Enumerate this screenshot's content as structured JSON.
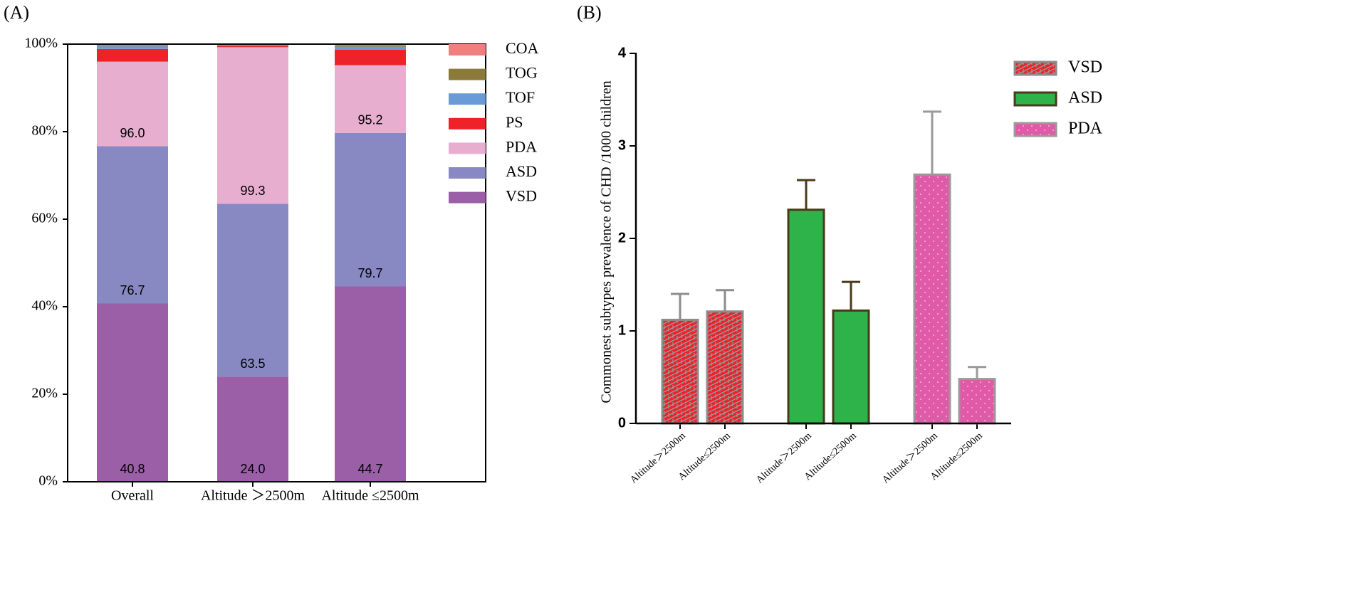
{
  "chart_data": [
    {
      "type": "stacked_bar",
      "title": "(A)",
      "categories": [
        "Overall",
        "Altitude ＞2500m",
        "Altitude ≤2500m"
      ],
      "series": [
        {
          "name": "VSD",
          "color": "#9b5fa8",
          "values": [
            40.8,
            24.0,
            44.7
          ],
          "annotations": [
            "40.8",
            "24.0",
            "44.7"
          ]
        },
        {
          "name": "ASD",
          "color": "#8889c3",
          "values": [
            35.9,
            39.5,
            35.0
          ],
          "annotations": [
            "76.7",
            "63.5",
            "79.7"
          ]
        },
        {
          "name": "PDA",
          "color": "#e8aecf",
          "values": [
            19.3,
            35.8,
            15.5
          ],
          "annotations": [
            "96.0",
            "99.3",
            "95.2"
          ]
        },
        {
          "name": "PS",
          "color": "#ee2229",
          "values": [
            2.9,
            0.3,
            3.5
          ]
        },
        {
          "name": "TOF",
          "color": "#6b9bd6",
          "values": [
            0.6,
            0.2,
            0.7
          ]
        },
        {
          "name": "TOG",
          "color": "#8b7a3a",
          "values": [
            0.2,
            0.1,
            0.3
          ]
        },
        {
          "name": "COA",
          "color": "#f08080",
          "values": [
            0.3,
            0.1,
            0.3
          ]
        }
      ],
      "ylim": [
        0,
        100
      ],
      "yticks": [
        {
          "value": 0,
          "label": "0%"
        },
        {
          "value": 20,
          "label": "20%"
        },
        {
          "value": 40,
          "label": "40%"
        },
        {
          "value": 60,
          "label": "60%"
        },
        {
          "value": 80,
          "label": "80%"
        },
        {
          "value": 100,
          "label": "100%"
        }
      ],
      "legend": "right"
    },
    {
      "type": "bar_error",
      "title": "(B)",
      "y_label": "Commonest subtypes prevalence of CHD /1000 children",
      "categories": [
        "Altitude＞2500m",
        "Altitude≤2500m",
        "Altitude＞2500m",
        "Altitude≤2500m",
        "Altitude＞2500m",
        "Altitude≤2500m"
      ],
      "series": [
        {
          "name": "VSD",
          "color": "#e8232a",
          "edgecolor": "#8c8c8c",
          "pattern": "brick",
          "values": [
            1.12,
            1.21,
            null,
            null,
            null,
            null
          ],
          "errors": [
            0.28,
            0.23,
            null,
            null,
            null,
            null
          ]
        },
        {
          "name": "ASD",
          "color": "#2db34a",
          "edgecolor": "#4a3a1a",
          "pattern": "none",
          "values": [
            null,
            null,
            2.31,
            1.22,
            null,
            null
          ],
          "errors": [
            null,
            null,
            0.32,
            0.31,
            null,
            null
          ]
        },
        {
          "name": "PDA",
          "color": "#e05aa8",
          "edgecolor": "#9a9a9a",
          "pattern": "dots",
          "values": [
            null,
            null,
            null,
            null,
            2.69,
            0.48
          ],
          "errors": [
            null,
            null,
            null,
            null,
            0.68,
            0.13
          ]
        }
      ],
      "ylim": [
        0,
        4
      ],
      "yticks": [
        0,
        1,
        2,
        3,
        4
      ],
      "legend": "upper right"
    }
  ]
}
